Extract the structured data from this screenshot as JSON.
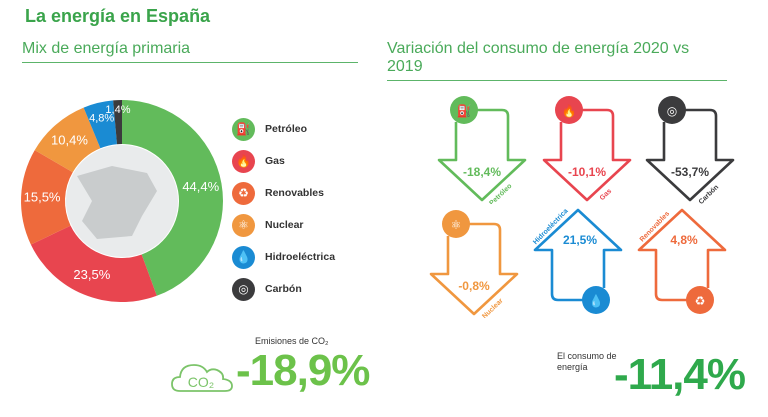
{
  "title": "La energía en España",
  "mix_title": "Mix de energía primaria",
  "variation_title": "Variación del consumo de energía 2020 vs 2019",
  "chart_data": {
    "type": "pie",
    "variant": "donut",
    "categories": [
      "Petróleo",
      "Gas",
      "Renovables",
      "Nuclear",
      "Hidroeléctrica",
      "Carbón"
    ],
    "values": [
      44.4,
      23.5,
      15.5,
      10.4,
      4.8,
      1.4
    ],
    "labels": [
      "44,4%",
      "23,5%",
      "15,5%",
      "10,4%",
      "4,8%",
      "1,4%"
    ],
    "colors": [
      "#62bb5b",
      "#e8454f",
      "#ee6a3c",
      "#f0973f",
      "#1a8bd3",
      "#3b3b3d"
    ],
    "legend_position": "right"
  },
  "legend": [
    {
      "label": "Petróleo",
      "icon": "oil-derrick-icon",
      "color": "#62bb5b",
      "glyph": "⛽"
    },
    {
      "label": "Gas",
      "icon": "flame-icon",
      "color": "#e8454f",
      "glyph": "🔥"
    },
    {
      "label": "Renovables",
      "icon": "renewable-icon",
      "color": "#ee6a3c",
      "glyph": "♻"
    },
    {
      "label": "Nuclear",
      "icon": "atom-icon",
      "color": "#f0973f",
      "glyph": "⚛"
    },
    {
      "label": "Hidroeléctrica",
      "icon": "water-drop-icon",
      "color": "#1a8bd3",
      "glyph": "💧"
    },
    {
      "label": "Carbón",
      "icon": "coal-icon",
      "color": "#3b3b3d",
      "glyph": "◎"
    }
  ],
  "variations": [
    {
      "label": "Petróleo",
      "value": "-18,4%",
      "direction": "down",
      "color": "#62bb5b",
      "glyph": "⛽",
      "icon": "oil-derrick-icon"
    },
    {
      "label": "Gas",
      "value": "-10,1%",
      "direction": "down",
      "color": "#e8454f",
      "glyph": "🔥",
      "icon": "flame-icon"
    },
    {
      "label": "Carbón",
      "value": "-53,7%",
      "direction": "down",
      "color": "#3b3b3d",
      "glyph": "◎",
      "icon": "coal-icon"
    },
    {
      "label": "Nuclear",
      "value": "-0,8%",
      "direction": "down",
      "color": "#f0973f",
      "glyph": "⚛",
      "icon": "atom-icon"
    },
    {
      "label": "Hidroeléctrica",
      "value": "21,5%",
      "direction": "up",
      "color": "#1a8bd3",
      "glyph": "💧",
      "icon": "water-drop-icon"
    },
    {
      "label": "Renovables",
      "value": "4,8%",
      "direction": "up",
      "color": "#ee6a3c",
      "glyph": "♻",
      "icon": "renewable-icon"
    }
  ],
  "emissions": {
    "label": "Emisiones de CO₂",
    "value": "-18,9%",
    "icon_text": "CO₂"
  },
  "consumption": {
    "label": "El consumo de energía",
    "value": "-11,4%"
  }
}
